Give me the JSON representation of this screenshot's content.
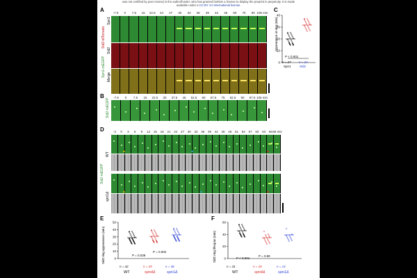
{
  "header": {
    "line1": "was not certified by peer review) is the author/funder, who has granted bioRxiv a license to display the preprint in perpetuity. It is made",
    "line2_prefix": "available under a",
    "line2_license": "CC-BY 4.0 International license",
    "line2_suffix": "."
  },
  "panelA": {
    "label": "A",
    "times": [
      "-7.5",
      "0",
      "7.5",
      "15",
      "22.5",
      "24",
      "27",
      "30",
      "33",
      "36",
      "39",
      "42",
      "45",
      "60",
      "75",
      "90",
      "105 min"
    ],
    "row_labels": [
      "Spn1",
      "Sid2",
      "Merge"
    ],
    "side_label_green": "Spn1-mEGFP",
    "side_label_red": "Sid2-tdTomato"
  },
  "panelB": {
    "label": "B",
    "times": [
      "-7.5",
      "0",
      "7.5",
      "15",
      "22.5",
      "30",
      "37.5",
      "45",
      "52.5",
      "60",
      "67.5",
      "75",
      "82.5",
      "90",
      "97.5",
      "105 min"
    ],
    "side_label": "Sid2-mEGFP"
  },
  "panelC": {
    "label": "C",
    "ylabel": "Appearance at ring (min)",
    "yticks": [
      "0",
      "10",
      "20",
      "30",
      "40"
    ],
    "categories": [
      "Spn1",
      "Sid2"
    ],
    "pvalue": "P < 0.001",
    "n": [
      "n = 27",
      "n = 24"
    ]
  },
  "panelD": {
    "label": "D",
    "times": [
      "-3",
      "0",
      "3",
      "6",
      "9",
      "12",
      "15",
      "18",
      "21",
      "24",
      "27",
      "30",
      "33",
      "36",
      "39",
      "42",
      "45",
      "48",
      "51",
      "54",
      "57",
      "60",
      "63",
      "66",
      "69 min"
    ],
    "side_label": "Sid2-mEGFP",
    "rows": [
      "WT",
      "spn1Δ"
    ]
  },
  "panelE": {
    "label": "E",
    "ylabel": "Sid2 ring appearance (min)",
    "yticks": [
      "0",
      "10",
      "20",
      "30",
      "40",
      "50"
    ],
    "categories": [
      "WT",
      "spn4Δ",
      "spn1Δ"
    ],
    "pvalues": [
      "P = 0.039",
      "P = 0.002"
    ],
    "n": [
      "n = 42",
      "n = 29",
      "n = 38"
    ]
  },
  "panelF": {
    "label": "F",
    "ylabel": "Sid2 ring lifespan (min)",
    "yticks": [
      "0",
      "20",
      "40",
      "60"
    ],
    "categories": [
      "WT",
      "spn4Δ",
      "spn1Δ"
    ],
    "pvalues": [
      "P < 0.001",
      "P = 0.90"
    ],
    "n": [
      "n = 31",
      "n = 18",
      "n = 14"
    ]
  },
  "colors": {
    "wt": "#000000",
    "spn4": "#d42a2a",
    "spn1": "#2a3fd4",
    "license_link": "#1a3fa8"
  }
}
